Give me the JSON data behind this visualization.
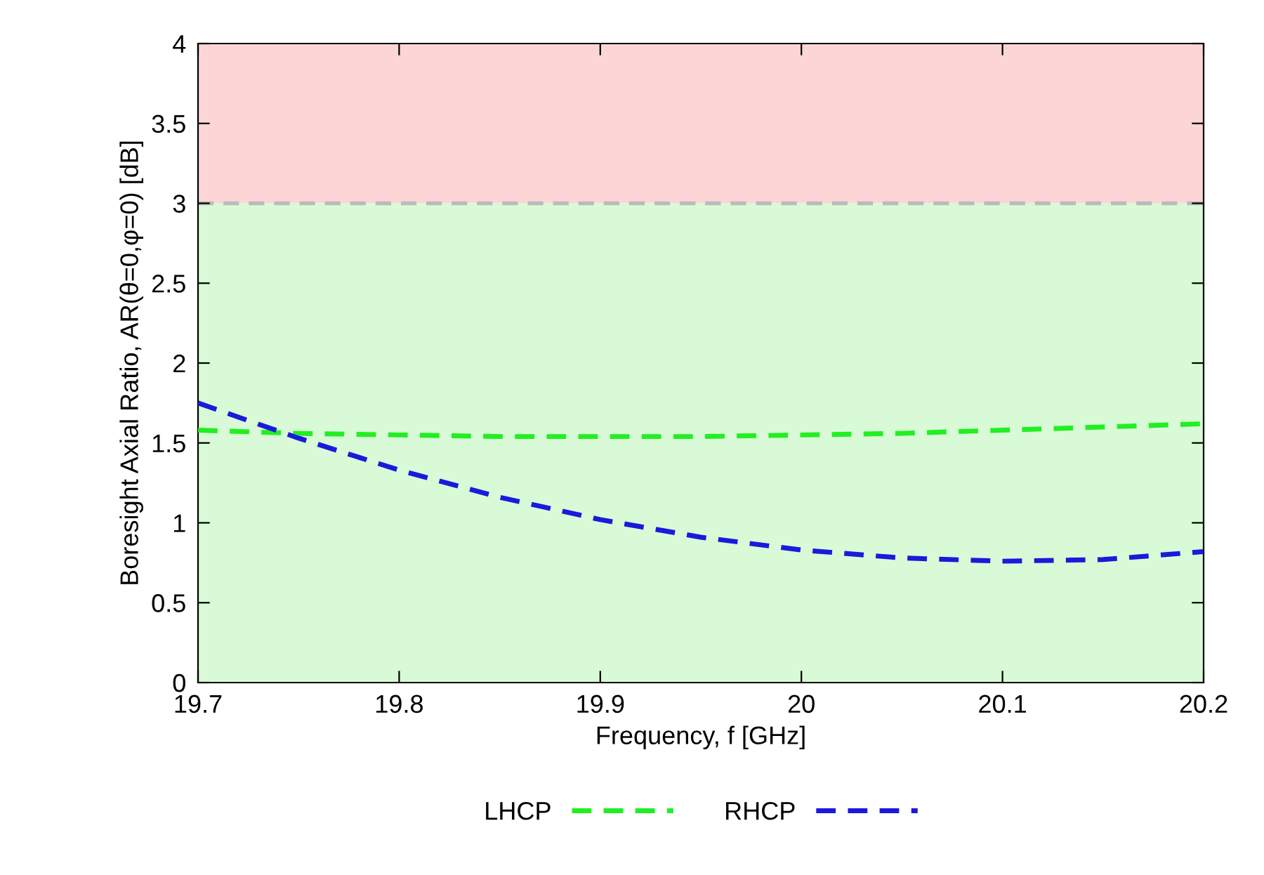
{
  "chart_data": {
    "type": "line",
    "xlabel": "Frequency, f [GHz]",
    "ylabel": "Boresight Axial Ratio, AR(θ=0,φ=0) [dB]",
    "xlim": [
      19.7,
      20.2
    ],
    "xticks": [
      19.7,
      19.8,
      19.9,
      20,
      20.1,
      20.2
    ],
    "ylim": [
      0,
      4
    ],
    "yticks": [
      0,
      0.5,
      1,
      1.5,
      2,
      2.5,
      3,
      3.5,
      4
    ],
    "grid": false,
    "legend": "bottom",
    "line_style": "dashed",
    "marker": "none",
    "bands": [
      {
        "axis": "y",
        "from": 0,
        "to": 3,
        "color": "#d8fad6"
      },
      {
        "axis": "y",
        "from": 3,
        "to": 4,
        "color": "#fcd6d6"
      }
    ],
    "ref_lines": [
      {
        "axis": "y",
        "value": 3,
        "color": "#bbbbbb",
        "line_style": "dashed"
      }
    ],
    "series": [
      {
        "name": "LHCP",
        "color": "#22ee22",
        "x": [
          19.7,
          19.75,
          19.8,
          19.85,
          19.9,
          19.95,
          20.0,
          20.05,
          20.1,
          20.15,
          20.2
        ],
        "values": [
          1.58,
          1.56,
          1.55,
          1.54,
          1.54,
          1.54,
          1.55,
          1.56,
          1.58,
          1.6,
          1.62
        ]
      },
      {
        "name": "RHCP",
        "color": "#1a1adb",
        "x": [
          19.7,
          19.75,
          19.8,
          19.85,
          19.9,
          19.95,
          20.0,
          20.05,
          20.1,
          20.15,
          20.2
        ],
        "values": [
          1.75,
          1.53,
          1.33,
          1.16,
          1.02,
          0.91,
          0.83,
          0.78,
          0.76,
          0.77,
          0.82
        ]
      }
    ]
  }
}
